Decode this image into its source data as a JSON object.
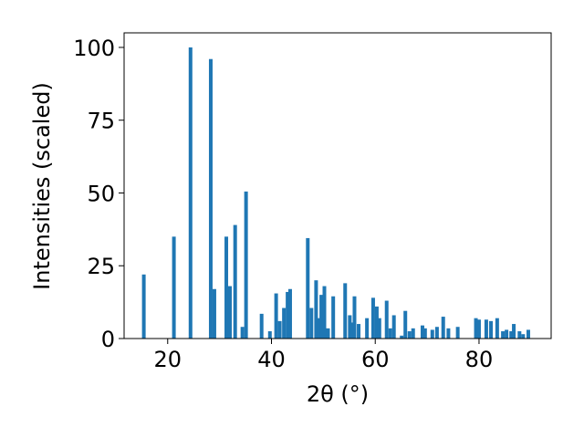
{
  "chart_data": {
    "type": "bar",
    "xlabel": "2θ (°)",
    "ylabel": "Intensities (scaled)",
    "x": [
      15.4,
      21.2,
      24.4,
      28.3,
      29.0,
      31.3,
      32.0,
      33.0,
      34.4,
      35.1,
      38.1,
      39.7,
      40.9,
      41.6,
      42.4,
      43.1,
      43.6,
      47.0,
      47.7,
      48.6,
      49.1,
      49.6,
      50.2,
      50.9,
      51.9,
      54.2,
      55.1,
      55.6,
      56.0,
      56.8,
      58.4,
      59.6,
      60.3,
      60.8,
      62.2,
      62.9,
      63.6,
      65.1,
      65.8,
      66.6,
      67.3,
      69.1,
      69.6,
      71.0,
      71.9,
      73.1,
      74.1,
      75.9,
      79.4,
      80.0,
      81.4,
      82.3,
      83.5,
      84.6,
      85.3,
      86.2,
      86.7,
      87.8,
      88.5,
      89.5
    ],
    "values": [
      22,
      35,
      100,
      96,
      17,
      35,
      18,
      39,
      4,
      50.5,
      8.5,
      2.5,
      15.5,
      6,
      10.5,
      16,
      17,
      34.5,
      10.5,
      20,
      7,
      15,
      18,
      3.5,
      14.5,
      19,
      8,
      5.5,
      14.5,
      5,
      7,
      14,
      11,
      7,
      13,
      3.5,
      8,
      1,
      9.5,
      2.5,
      3.5,
      4.5,
      3.5,
      3,
      4,
      7.5,
      3.5,
      4,
      7,
      6.5,
      6.5,
      6,
      7,
      2.5,
      3,
      2.5,
      5,
      2.5,
      1.5,
      3
    ],
    "color": "#1f77b4",
    "xlim": [
      11.6,
      93.9
    ],
    "ylim": [
      0,
      105
    ],
    "xticks": [
      20,
      40,
      60,
      80
    ],
    "yticks": [
      0,
      25,
      50,
      75,
      100
    ]
  }
}
